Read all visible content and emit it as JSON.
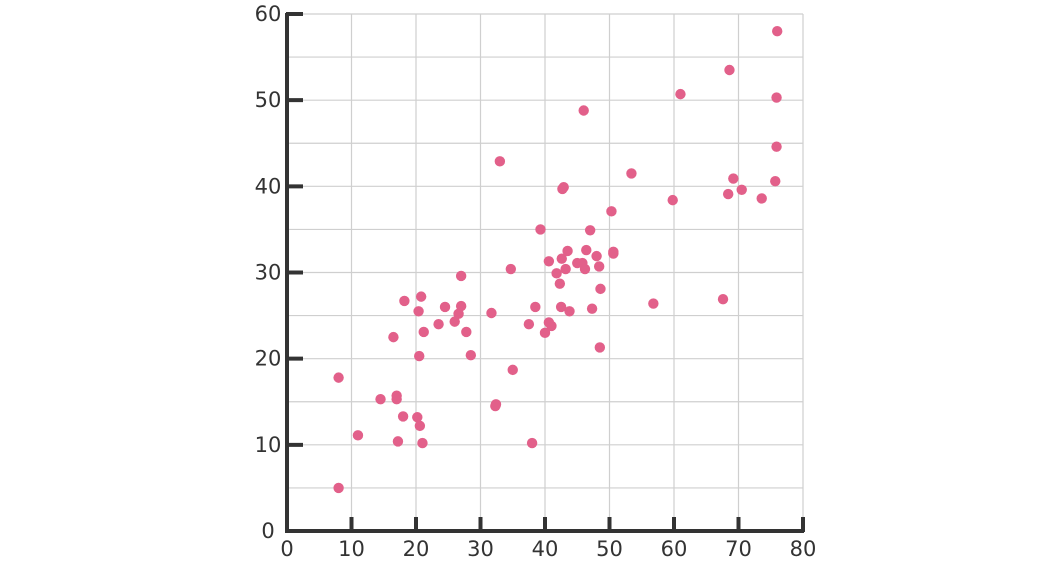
{
  "colors": {
    "point": "#E2608A",
    "axis": "#333333",
    "grid": "#CFCFCF"
  },
  "chart_data": {
    "type": "scatter",
    "title": "",
    "xlabel": "",
    "ylabel": "",
    "xlim": [
      0,
      80
    ],
    "ylim": [
      0,
      60
    ],
    "grid": true,
    "x_ticks": [
      "0",
      "10",
      "20",
      "30",
      "40",
      "50",
      "60",
      "70",
      "80"
    ],
    "y_ticks": [
      "0",
      "10",
      "20",
      "30",
      "40",
      "50",
      "60"
    ],
    "series": [
      {
        "points": [
          {
            "x": 8,
            "y": 5
          },
          {
            "x": 8,
            "y": 17.8
          },
          {
            "x": 11,
            "y": 11.1
          },
          {
            "x": 14.5,
            "y": 15.3
          },
          {
            "x": 16.5,
            "y": 22.5
          },
          {
            "x": 17,
            "y": 15.7
          },
          {
            "x": 17,
            "y": 15.3
          },
          {
            "x": 17.2,
            "y": 10.4
          },
          {
            "x": 18,
            "y": 13.3
          },
          {
            "x": 18.2,
            "y": 26.7
          },
          {
            "x": 20.2,
            "y": 13.2
          },
          {
            "x": 20.4,
            "y": 25.5
          },
          {
            "x": 20.5,
            "y": 20.3
          },
          {
            "x": 20.6,
            "y": 12.2
          },
          {
            "x": 20.8,
            "y": 27.2
          },
          {
            "x": 21,
            "y": 10.2
          },
          {
            "x": 21.2,
            "y": 23.1
          },
          {
            "x": 23.5,
            "y": 24
          },
          {
            "x": 24.5,
            "y": 26
          },
          {
            "x": 26,
            "y": 24.3
          },
          {
            "x": 26.6,
            "y": 25.2
          },
          {
            "x": 27,
            "y": 26.1
          },
          {
            "x": 27,
            "y": 29.6
          },
          {
            "x": 27.8,
            "y": 23.1
          },
          {
            "x": 28.5,
            "y": 20.4
          },
          {
            "x": 31.7,
            "y": 25.3
          },
          {
            "x": 32.3,
            "y": 14.5
          },
          {
            "x": 32.4,
            "y": 14.7
          },
          {
            "x": 33,
            "y": 42.9
          },
          {
            "x": 34.7,
            "y": 30.4
          },
          {
            "x": 35,
            "y": 18.7
          },
          {
            "x": 37.5,
            "y": 24
          },
          {
            "x": 38,
            "y": 10.2
          },
          {
            "x": 38.5,
            "y": 26
          },
          {
            "x": 39.3,
            "y": 35
          },
          {
            "x": 40,
            "y": 23
          },
          {
            "x": 40.6,
            "y": 24.2
          },
          {
            "x": 40.6,
            "y": 31.3
          },
          {
            "x": 41,
            "y": 23.8
          },
          {
            "x": 41.8,
            "y": 29.9
          },
          {
            "x": 42.3,
            "y": 28.7
          },
          {
            "x": 42.5,
            "y": 26
          },
          {
            "x": 42.6,
            "y": 31.6
          },
          {
            "x": 42.7,
            "y": 39.7
          },
          {
            "x": 42.9,
            "y": 39.9
          },
          {
            "x": 43.2,
            "y": 30.4
          },
          {
            "x": 43.5,
            "y": 32.5
          },
          {
            "x": 43.8,
            "y": 25.5
          },
          {
            "x": 45,
            "y": 31.1
          },
          {
            "x": 45.8,
            "y": 31.1
          },
          {
            "x": 46,
            "y": 48.8
          },
          {
            "x": 46.2,
            "y": 30.4
          },
          {
            "x": 46.4,
            "y": 32.6
          },
          {
            "x": 47,
            "y": 34.9
          },
          {
            "x": 47.3,
            "y": 25.8
          },
          {
            "x": 48,
            "y": 31.9
          },
          {
            "x": 48.4,
            "y": 30.7
          },
          {
            "x": 48.5,
            "y": 21.3
          },
          {
            "x": 48.6,
            "y": 28.1
          },
          {
            "x": 50.3,
            "y": 37.1
          },
          {
            "x": 50.6,
            "y": 32.2
          },
          {
            "x": 50.6,
            "y": 32.4
          },
          {
            "x": 53.4,
            "y": 41.5
          },
          {
            "x": 56.8,
            "y": 26.4
          },
          {
            "x": 59.8,
            "y": 38.4
          },
          {
            "x": 61,
            "y": 50.7
          },
          {
            "x": 67.6,
            "y": 26.9
          },
          {
            "x": 68.4,
            "y": 39.1
          },
          {
            "x": 68.6,
            "y": 53.5
          },
          {
            "x": 69.2,
            "y": 40.9
          },
          {
            "x": 70.5,
            "y": 39.6
          },
          {
            "x": 73.6,
            "y": 38.6
          },
          {
            "x": 75.7,
            "y": 40.6
          },
          {
            "x": 75.9,
            "y": 50.3
          },
          {
            "x": 75.9,
            "y": 44.6
          },
          {
            "x": 76,
            "y": 58
          }
        ]
      }
    ]
  }
}
